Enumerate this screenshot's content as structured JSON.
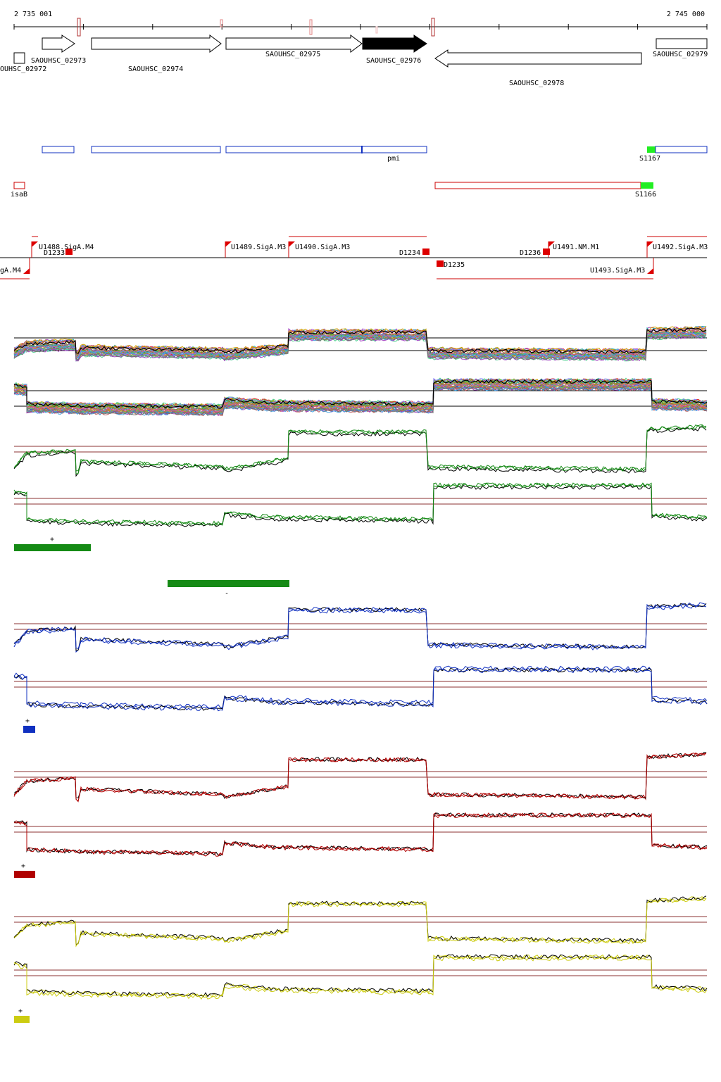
{
  "coords": {
    "start": "2 735 001",
    "end": "2 745 000"
  },
  "colors": {
    "blue": "#1030c0",
    "red": "#cc0000",
    "green": "#158a15",
    "bright_green": "#22ee22",
    "dark_red": "#b00000",
    "yellow": "#cccc11",
    "ref_line": "#8b3030"
  },
  "genes": [
    {
      "label": "SAOUHSC_02973"
    },
    {
      "label": "SAOUHSC_02974"
    },
    {
      "label": "SAOUHSC_02975"
    },
    {
      "label": "SAOUHSC_02976"
    },
    {
      "label": "SAOUHSC_02978"
    },
    {
      "label": "SAOUHSC_02979"
    },
    {
      "label": "OUHSC_02972"
    }
  ],
  "operon_labels": {
    "pmi": "pmi",
    "s1167": "S1167"
  },
  "antisense_labels": {
    "isab": "isaB",
    "s1166": "S1166"
  },
  "tss_labels": {
    "u1488": "U1488.SigA.M4",
    "d1233": "D1233",
    "u1489": "U1489.SigA.M3",
    "u1490": "U1490.SigA.M3",
    "d1234": "D1234",
    "d1236": "D1236",
    "u1491": "U1491.NM.M1",
    "u1492": "U1492.SigA.M3",
    "siga_m4": "gA.M4",
    "d1235": "D1235",
    "u1493": "U1493.SigA.M3"
  },
  "strand_labels": {
    "green_plus": "+",
    "green_minus": "-",
    "blue_plus": "+",
    "red_plus": "+",
    "yellow_plus": "+"
  }
}
